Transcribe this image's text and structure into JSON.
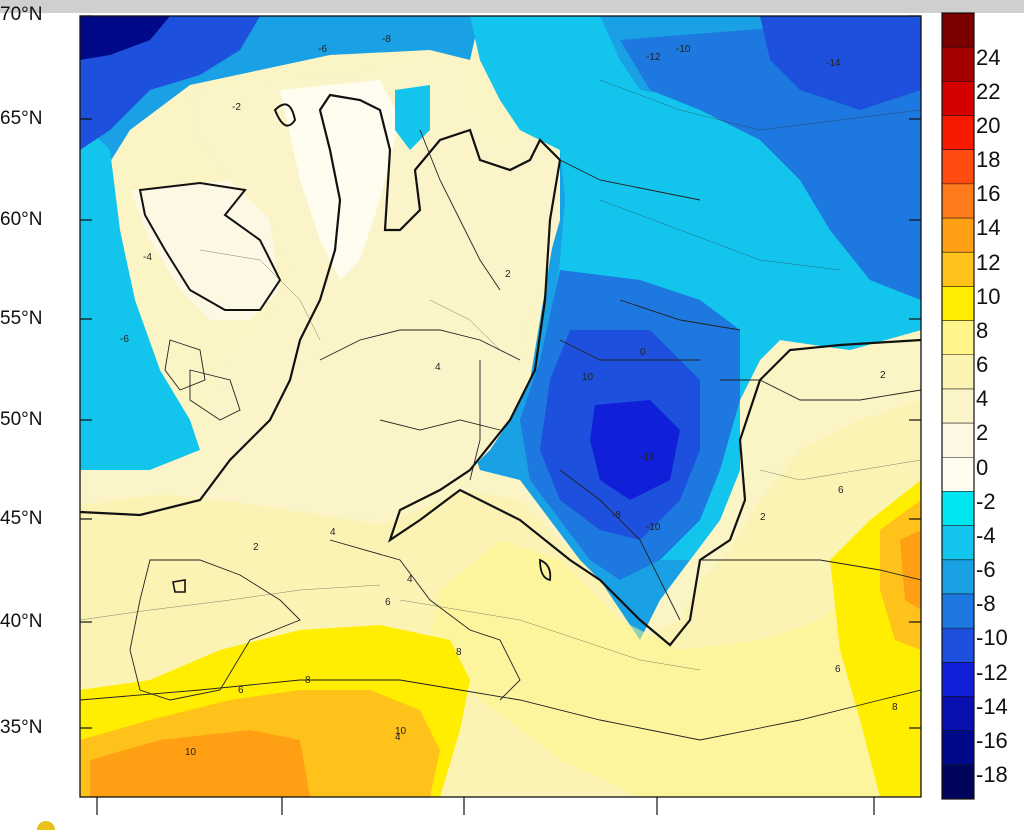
{
  "lat_labels": [
    "70°N",
    "65°N",
    "60°N",
    "55°N",
    "50°N",
    "45°N",
    "40°N",
    "35°N"
  ],
  "colorbar": {
    "labels": [
      "24",
      "22",
      "20",
      "18",
      "16",
      "14",
      "12",
      "10",
      "8",
      "6",
      "4",
      "2",
      "0",
      "-2",
      "-4",
      "-6",
      "-8",
      "-10",
      "-12",
      "-14",
      "-16",
      "-18"
    ],
    "colors": [
      "#7a0000",
      "#a50000",
      "#d40000",
      "#f51a00",
      "#ff4a10",
      "#ff7a1a",
      "#ffa014",
      "#ffc21a",
      "#ffee00",
      "#fff58a",
      "#fbf3b4",
      "#faf4c8",
      "#fcf8e4",
      "#fffdf0",
      "#00e6f0",
      "#13c4ec",
      "#1aa0e4",
      "#1d78e0",
      "#1d50dc",
      "#1020d8",
      "#0a10b0",
      "#000a88",
      "#00045a"
    ]
  },
  "contour_labels": [
    "-6",
    "-8",
    "-10",
    "-12",
    "-14",
    "-2",
    "-4",
    "-6",
    "2",
    "4",
    "6",
    "8",
    "10",
    "0",
    "2",
    "4",
    "6",
    "4",
    "10",
    "-10",
    "-8",
    "-12",
    "2",
    "4",
    "6",
    "8",
    "2",
    "6",
    "8",
    "10"
  ]
}
